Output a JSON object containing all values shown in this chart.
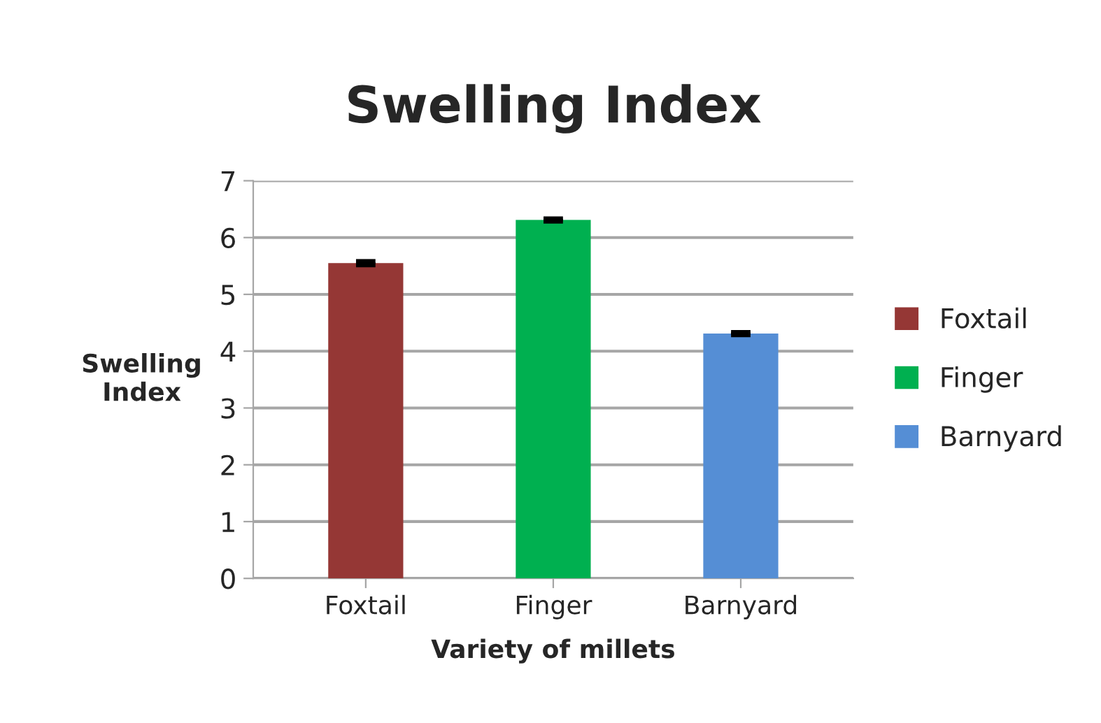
{
  "chart_data": {
    "type": "bar",
    "title": "Swelling Index",
    "xlabel": "Variety of millets",
    "ylabel": "Swelling\nIndex",
    "categories": [
      "Foxtail",
      "Finger",
      "Barnyard"
    ],
    "series": [
      {
        "name": "Foxtail",
        "color": "#953735",
        "values": [
          5.55,
          null,
          null
        ],
        "errors": [
          0.03,
          null,
          null
        ]
      },
      {
        "name": "Finger",
        "color": "#00b050",
        "values": [
          null,
          6.31,
          null
        ],
        "errors": [
          null,
          0.02,
          null
        ]
      },
      {
        "name": "Barnyard",
        "color": "#558ed5",
        "values": [
          null,
          null,
          4.31
        ],
        "errors": [
          null,
          null,
          0.02
        ]
      }
    ],
    "ylim": [
      0,
      7
    ],
    "yticks": [
      0,
      1,
      2,
      3,
      4,
      5,
      6,
      7
    ],
    "grid": "y",
    "legend": "right"
  }
}
